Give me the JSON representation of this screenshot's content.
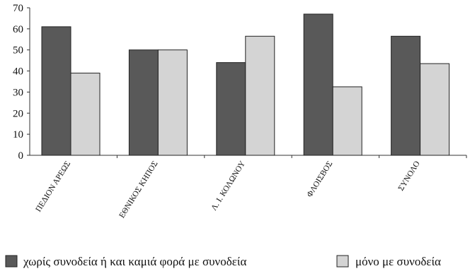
{
  "chart_data": {
    "type": "bar",
    "title": "",
    "xlabel": "",
    "ylabel": "",
    "ylim": [
      0,
      70
    ],
    "yticks": [
      0,
      10,
      20,
      30,
      40,
      50,
      60,
      70
    ],
    "grid": false,
    "legend_position": "bottom",
    "categories": [
      "ΠΕΔΙΟΝ ΑΡΕΩΣ",
      "ΕΘΝΙΚΟΣ ΚΗΠΟΣ",
      "Λ. Ι. ΚΟΛΩΝΟΥ",
      "ΦΛΟΙΣΒΟΣ",
      "ΣΥΝΟΛΟ"
    ],
    "series": [
      {
        "name": "χωρίς συνοδεία ή και καμιά φορά με συνοδεία",
        "values": [
          61,
          50,
          44,
          67,
          56.5
        ],
        "color": "#595959"
      },
      {
        "name": "μόνο με συνοδεία",
        "values": [
          39,
          50,
          56.5,
          32.5,
          43.5
        ],
        "color": "#d4d4d4"
      }
    ]
  }
}
